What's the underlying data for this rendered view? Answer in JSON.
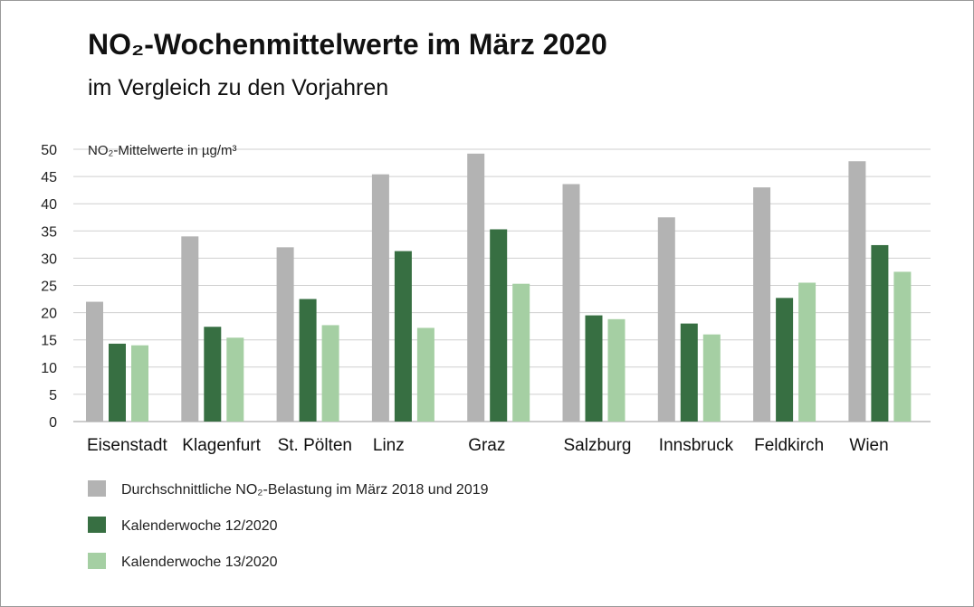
{
  "title": "NO₂-Wochenmittelwerte im März 2020",
  "subtitle": "im Vergleich zu den Vorjahren",
  "chart_data": {
    "type": "bar",
    "ylabel": "NO₂-Mittelwerte in µg/m³",
    "ylim": [
      0,
      50
    ],
    "yticks": [
      0,
      5,
      10,
      15,
      20,
      25,
      30,
      35,
      40,
      45,
      50
    ],
    "grid": true,
    "legend_position": "bottom-left",
    "categories": [
      "Eisenstadt",
      "Klagenfurt",
      "St. Pölten",
      "Linz",
      "Graz",
      "Salzburg",
      "Innsbruck",
      "Feldkirch",
      "Wien"
    ],
    "series": [
      {
        "name": "Durchschnittliche NO₂-Belastung im März 2018 und 2019",
        "color": "#b3b3b3",
        "values": [
          22,
          34,
          32,
          45.4,
          49.2,
          43.6,
          37.5,
          43,
          47.8
        ]
      },
      {
        "name": "Kalenderwoche 12/2020",
        "color": "#376f42",
        "values": [
          14.3,
          17.4,
          22.5,
          31.3,
          35.3,
          19.5,
          18,
          22.7,
          32.4
        ]
      },
      {
        "name": "Kalenderwoche 13/2020",
        "color": "#a5cfa3",
        "values": [
          14,
          15.4,
          17.7,
          17.2,
          25.3,
          18.8,
          16,
          25.5,
          27.5
        ]
      }
    ]
  }
}
